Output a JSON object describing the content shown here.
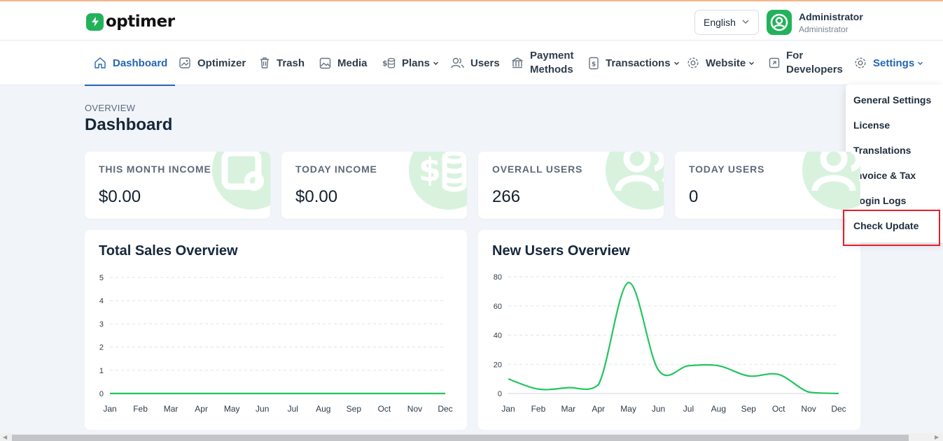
{
  "brand": {
    "name": "optimer"
  },
  "header": {
    "language": "English",
    "user_name": "Administrator",
    "user_role": "Administrator"
  },
  "nav": [
    {
      "label": "Dashboard",
      "icon": "home-icon",
      "active": true
    },
    {
      "label": "Optimizer",
      "icon": "image-optimize-icon"
    },
    {
      "label": "Trash",
      "icon": "trash-icon"
    },
    {
      "label": "Media",
      "icon": "image-icon"
    },
    {
      "label": "Plans",
      "icon": "coins-icon",
      "dropdown": true
    },
    {
      "label": "Users",
      "icon": "users-icon"
    },
    {
      "label": "Payment Methods",
      "icon": "bank-icon"
    },
    {
      "label": "Transactions",
      "icon": "receipt-icon",
      "dropdown": true
    },
    {
      "label": "Website",
      "icon": "gear-icon",
      "dropdown": true
    },
    {
      "label": "For Developers",
      "icon": "code-icon"
    },
    {
      "label": "Settings",
      "icon": "settings-icon",
      "dropdown": true,
      "open": true
    }
  ],
  "settings_menu": [
    "General Settings",
    "License",
    "Translations",
    "Invoice & Tax",
    "Login Logs",
    "Check Update"
  ],
  "page": {
    "eyebrow": "OVERVIEW",
    "title": "Dashboard"
  },
  "stats": [
    {
      "label": "THIS MONTH INCOME",
      "value": "$0.00",
      "icon": "wallet-icon"
    },
    {
      "label": "TODAY INCOME",
      "value": "$0.00",
      "icon": "money-icon"
    },
    {
      "label": "OVERALL USERS",
      "value": "266",
      "icon": "users-icon"
    },
    {
      "label": "TODAY USERS",
      "value": "0",
      "icon": "users-icon"
    }
  ],
  "colors": {
    "accent": "#2566b0",
    "brand": "#22b25a",
    "line": "#22c55e",
    "highlight": "#e3212b"
  },
  "chart_data": [
    {
      "type": "line",
      "title": "Total Sales Overview",
      "categories": [
        "Jan",
        "Feb",
        "Mar",
        "Apr",
        "May",
        "Jun",
        "Jul",
        "Aug",
        "Sep",
        "Oct",
        "Nov",
        "Dec"
      ],
      "series": [
        {
          "values": [
            0,
            0,
            0,
            0,
            0,
            0,
            0,
            0,
            0,
            0,
            0,
            0
          ]
        }
      ],
      "yticks": [
        0,
        1,
        2,
        3,
        4,
        5
      ],
      "ylim": [
        0,
        5
      ],
      "grid": true
    },
    {
      "type": "line",
      "title": "New Users Overview",
      "categories": [
        "Jan",
        "Feb",
        "Mar",
        "Apr",
        "May",
        "Jun",
        "Jul",
        "Aug",
        "Sep",
        "Oct",
        "Nov",
        "Dec"
      ],
      "series": [
        {
          "values": [
            10,
            3,
            4,
            6,
            76,
            16,
            19,
            19,
            12,
            13,
            1,
            0
          ]
        }
      ],
      "yticks": [
        0,
        20,
        40,
        60,
        80
      ],
      "ylim": [
        0,
        80
      ],
      "grid": true
    }
  ]
}
